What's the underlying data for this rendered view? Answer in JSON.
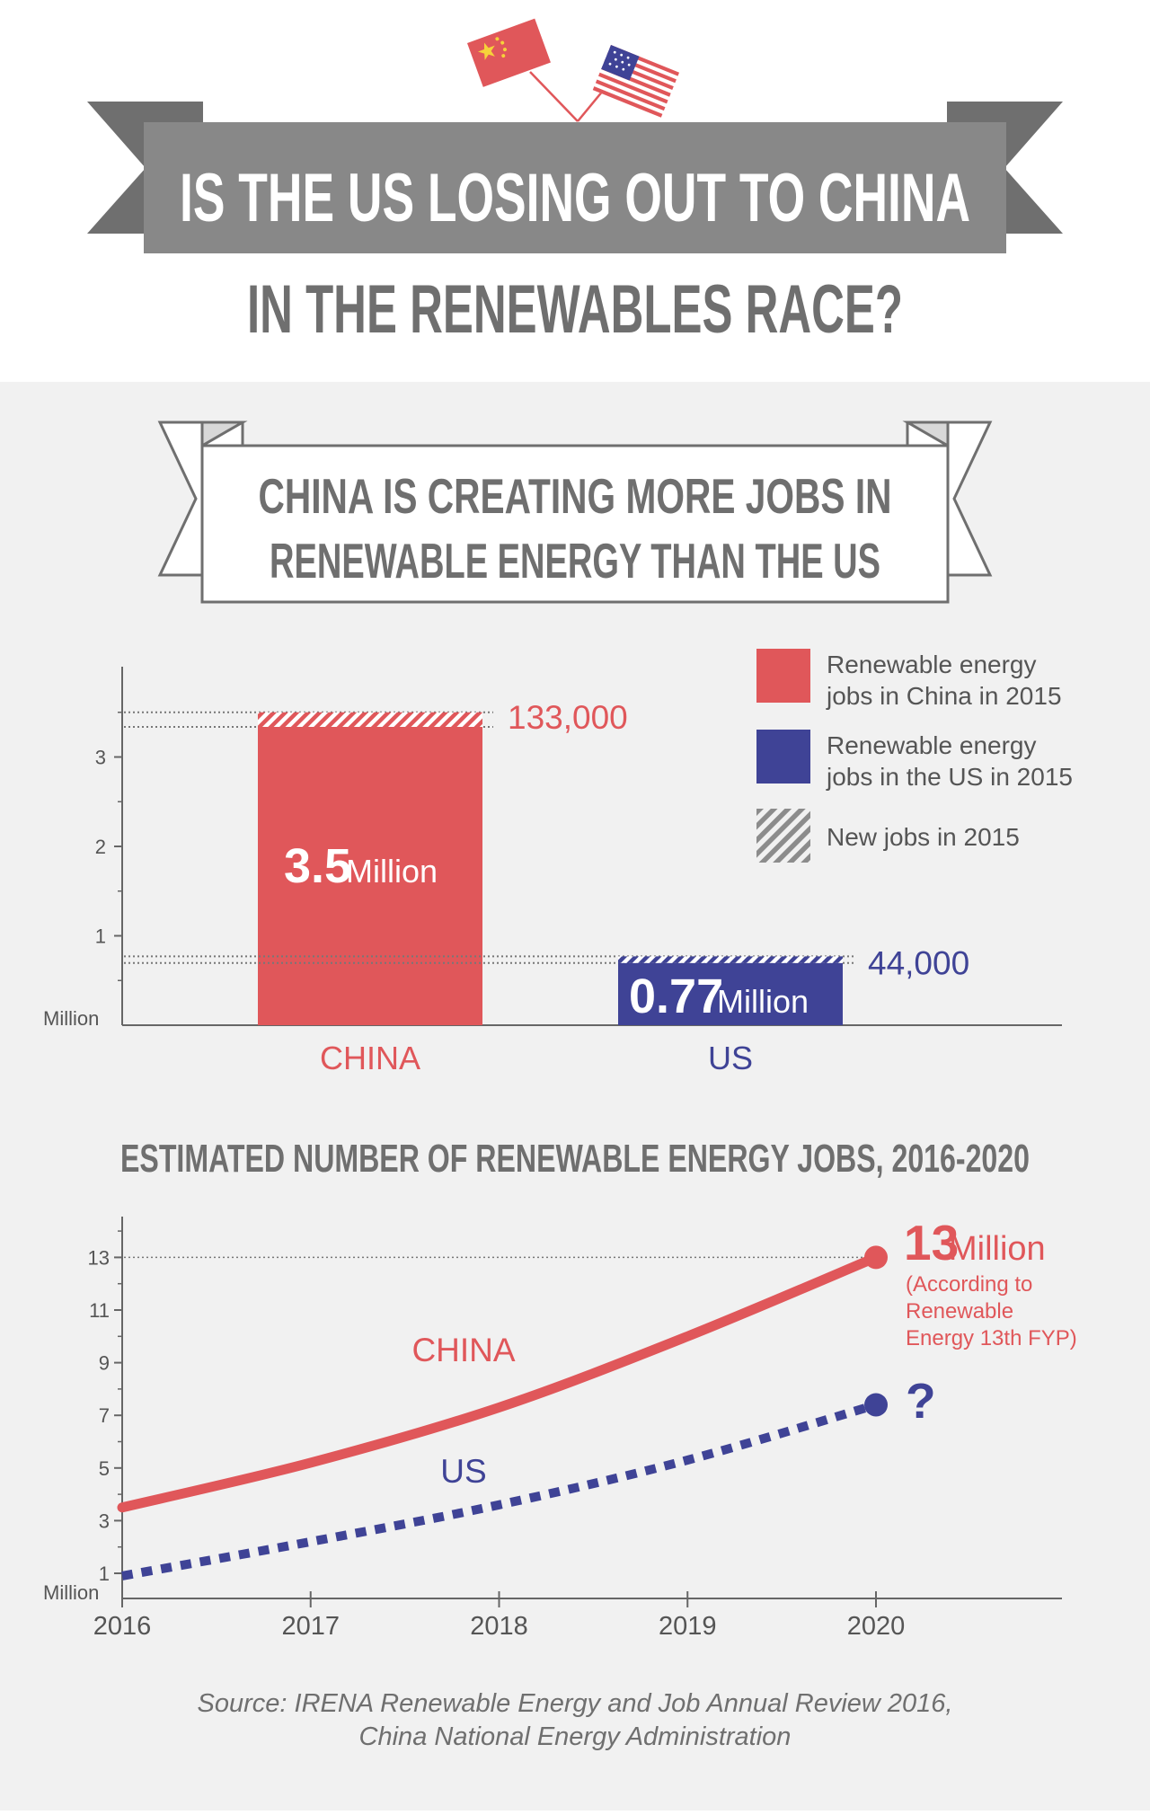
{
  "header": {
    "title_line1": "IS THE US LOSING OUT TO CHINA",
    "title_line2": "IN THE RENEWABLES RACE?"
  },
  "section1": {
    "banner_line1": "CHINA IS CREATING MORE JOBS IN",
    "banner_line2": "RENEWABLE ENERGY THAN THE US"
  },
  "chart_data": [
    {
      "type": "bar",
      "categories": [
        "CHINA",
        "US"
      ],
      "values": [
        3.5,
        0.77
      ],
      "new_jobs_values": [
        0.133,
        0.044
      ],
      "value_labels": [
        "3.5",
        "0.77"
      ],
      "value_unit": "Million",
      "new_jobs_labels": [
        "133,000",
        "44,000"
      ],
      "ylabel": "Million",
      "yticks": [
        1,
        2,
        3
      ],
      "ylim": [
        0,
        4
      ],
      "colors": [
        "#e0575a",
        "#3f4396"
      ],
      "legend": [
        {
          "line1": "Renewable energy",
          "line2": "jobs in China in 2015",
          "color": "#e0575a"
        },
        {
          "line1": "Renewable energy",
          "line2": "jobs in the US in 2015",
          "color": "#3f4396"
        },
        {
          "line1": "New jobs in 2015",
          "line2": "",
          "color": "#9a9a9a"
        }
      ],
      "legend_position": "top-right"
    },
    {
      "type": "line",
      "title": "ESTIMATED NUMBER OF RENEWABLE ENERGY JOBS, 2016-2020",
      "x": [
        2016,
        2017,
        2018,
        2019,
        2020
      ],
      "ylabel": "Million",
      "yticks": [
        1,
        3,
        5,
        7,
        9,
        11,
        13
      ],
      "ylim": [
        0.2,
        14.2
      ],
      "series": [
        {
          "name": "CHINA",
          "x": [
            2016,
            2017,
            2018,
            2019,
            2020
          ],
          "values": [
            3.5,
            5.2,
            7.3,
            10.0,
            13.0
          ],
          "color": "#e0575a",
          "style": "solid"
        },
        {
          "name": "US",
          "x": [
            2016,
            2017,
            2018,
            2019,
            2020
          ],
          "values": [
            0.9,
            2.2,
            3.6,
            5.3,
            7.4
          ],
          "color": "#3f4396",
          "style": "dashed"
        }
      ],
      "endpoint_labels": {
        "china_value": "13",
        "china_unit": "Million",
        "china_note": [
          "(According to",
          "Renewable",
          "Energy 13th FYP)"
        ],
        "us_label": "?"
      }
    }
  ],
  "source": {
    "line1": "Source: IRENA Renewable Energy and Job Annual Review 2016,",
    "line2": "China National Energy Administration"
  }
}
